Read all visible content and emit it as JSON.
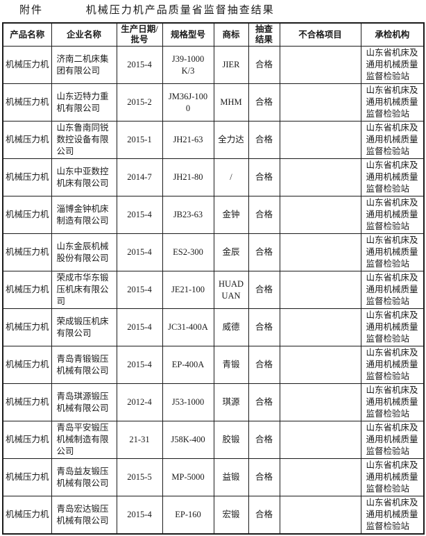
{
  "header": {
    "attachment_label": "附件",
    "title": "机械压力机产品质量省监督抽查结果"
  },
  "table": {
    "column_keys": [
      "product",
      "company",
      "date",
      "model",
      "brand",
      "result",
      "defects",
      "agency"
    ],
    "headers": [
      "产品名称",
      "企业名称",
      "生产日期/批号",
      "规格型号",
      "商标",
      "抽查结果",
      "不合格项目",
      "承检机构"
    ],
    "rows": [
      {
        "product": "机械压力机",
        "company": "济南二机床集团有限公司",
        "date": "2015-4",
        "model": "J39-1000K/3",
        "brand": "JIER",
        "result": "合格",
        "defects": "",
        "agency": "山东省机床及通用机械质量监督检验站"
      },
      {
        "product": "机械压力机",
        "company": "山东迈特力重机有限公司",
        "date": "2015-2",
        "model": "JM36J-1000",
        "brand": "MHM",
        "result": "合格",
        "defects": "",
        "agency": "山东省机床及通用机械质量监督检验站"
      },
      {
        "product": "机械压力机",
        "company": "山东鲁南同锐数控设备有限公司",
        "date": "2015-1",
        "model": "JH21-63",
        "brand": "全力达",
        "result": "合格",
        "defects": "",
        "agency": "山东省机床及通用机械质量监督检验站"
      },
      {
        "product": "机械压力机",
        "company": "山东中亚数控机床有限公司",
        "date": "2014-7",
        "model": "JH21-80",
        "brand": "/",
        "result": "合格",
        "defects": "",
        "agency": "山东省机床及通用机械质量监督检验站"
      },
      {
        "product": "机械压力机",
        "company": "淄博金钟机床制造有限公司",
        "date": "2015-4",
        "model": "JB23-63",
        "brand": "金钟",
        "result": "合格",
        "defects": "",
        "agency": "山东省机床及通用机械质量监督检验站"
      },
      {
        "product": "机械压力机",
        "company": "山东金辰机械股份有限公司",
        "date": "2015-4",
        "model": "ES2-300",
        "brand": "金辰",
        "result": "合格",
        "defects": "",
        "agency": "山东省机床及通用机械质量监督检验站"
      },
      {
        "product": "机械压力机",
        "company": "荣成市华东锻压机床有限公司",
        "date": "2015-4",
        "model": "JE21-100",
        "brand": "HUADUAN",
        "result": "合格",
        "defects": "",
        "agency": "山东省机床及通用机械质量监督检验站"
      },
      {
        "product": "机械压力机",
        "company": "荣成锻压机床有限公司",
        "date": "2015-4",
        "model": "JC31-400A",
        "brand": "威德",
        "result": "合格",
        "defects": "",
        "agency": "山东省机床及通用机械质量监督检验站"
      },
      {
        "product": "机械压力机",
        "company": "青岛青锻锻压机械有限公司",
        "date": "2015-4",
        "model": "EP-400A",
        "brand": "青锻",
        "result": "合格",
        "defects": "",
        "agency": "山东省机床及通用机械质量监督检验站"
      },
      {
        "product": "机械压力机",
        "company": "青岛琪源锻压机械有限公司",
        "date": "2012-4",
        "model": "J53-1000",
        "brand": "琪源",
        "result": "合格",
        "defects": "",
        "agency": "山东省机床及通用机械质量监督检验站"
      },
      {
        "product": "机械压力机",
        "company": "青岛平安锻压机械制造有限公司",
        "date": "21-31",
        "model": "J58K-400",
        "brand": "胶锻",
        "result": "合格",
        "defects": "",
        "agency": "山东省机床及通用机械质量监督检验站"
      },
      {
        "product": "机械压力机",
        "company": "青岛益友锻压机械有限公司",
        "date": "2015-5",
        "model": "MP-5000",
        "brand": "益锻",
        "result": "合格",
        "defects": "",
        "agency": "山东省机床及通用机械质量监督检验站"
      },
      {
        "product": "机械压力机",
        "company": "青岛宏达锻压机械有限公司",
        "date": "2015-4",
        "model": "EP-160",
        "brand": "宏锻",
        "result": "合格",
        "defects": "",
        "agency": "山东省机床及通用机械质量监督检验站"
      }
    ]
  }
}
